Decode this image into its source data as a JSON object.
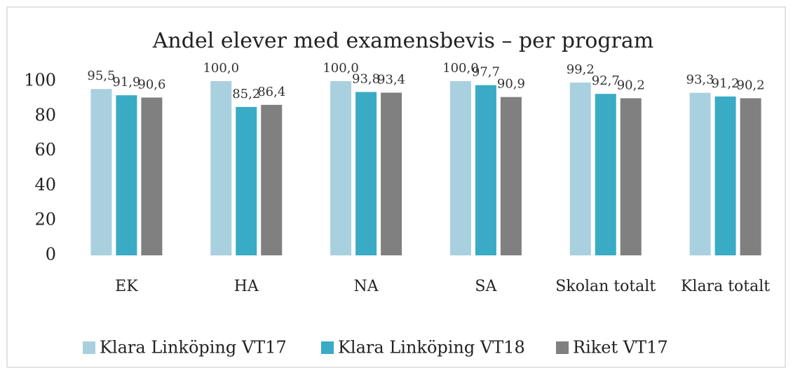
{
  "chart_data": {
    "type": "bar",
    "title": "Andel elever med examensbevis – per program",
    "categories": [
      "EK",
      "HA",
      "NA",
      "SA",
      "Skolan totalt",
      "Klara totalt"
    ],
    "series": [
      {
        "name": "Klara Linköping VT17",
        "color": "#a9d0de",
        "values": [
          95.5,
          100.0,
          100.0,
          100.0,
          99.2,
          93.3
        ],
        "value_labels": [
          "95,5",
          "100,0",
          "100,0",
          "100,0",
          "99,2",
          "93,3"
        ]
      },
      {
        "name": "Klara Linköping VT18",
        "color": "#3aabc5",
        "values": [
          91.9,
          85.2,
          93.8,
          97.7,
          92.7,
          91.2
        ],
        "value_labels": [
          "91,9",
          "85,2",
          "93,8",
          "97,7",
          "92,7",
          "91,2"
        ]
      },
      {
        "name": "Riket VT17",
        "color": "#808080",
        "values": [
          90.6,
          86.4,
          93.4,
          90.9,
          90.2,
          90.2
        ],
        "value_labels": [
          "90,6",
          "86,4",
          "93,4",
          "90,9",
          "90,2",
          "90,2"
        ]
      }
    ],
    "ylim": [
      0,
      100
    ],
    "yticks": [
      0,
      20,
      40,
      60,
      80,
      100
    ],
    "grid": false,
    "legend": "bottom"
  }
}
